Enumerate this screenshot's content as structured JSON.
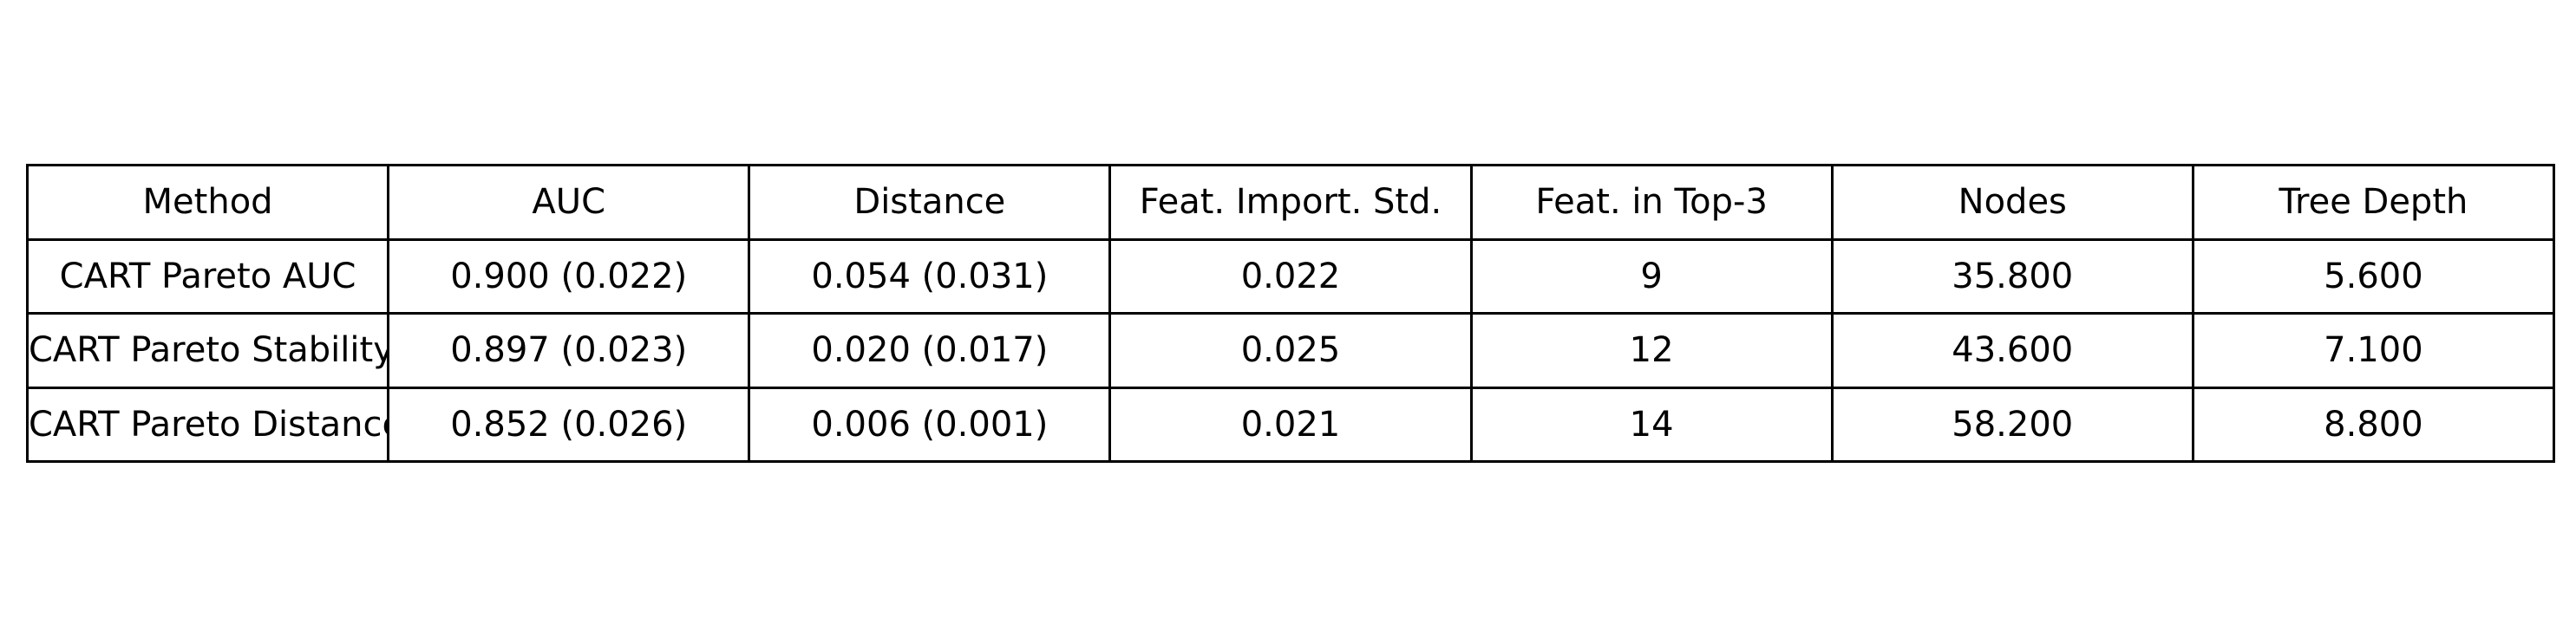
{
  "chart_data": {
    "type": "table",
    "columns": [
      "Method",
      "AUC",
      "Distance",
      "Feat. Import. Std.",
      "Feat. in Top-3",
      "Nodes",
      "Tree Depth"
    ],
    "rows": [
      [
        "CART Pareto AUC",
        "0.900 (0.022)",
        "0.054 (0.031)",
        "0.022",
        "9",
        "35.800",
        "5.600"
      ],
      [
        "CART Pareto Stability",
        "0.897 (0.023)",
        "0.020 (0.017)",
        "0.025",
        "12",
        "43.600",
        "7.100"
      ],
      [
        "CART Pareto Distance",
        "0.852 (0.026)",
        "0.006 (0.001)",
        "0.021",
        "14",
        "58.200",
        "8.800"
      ]
    ]
  }
}
